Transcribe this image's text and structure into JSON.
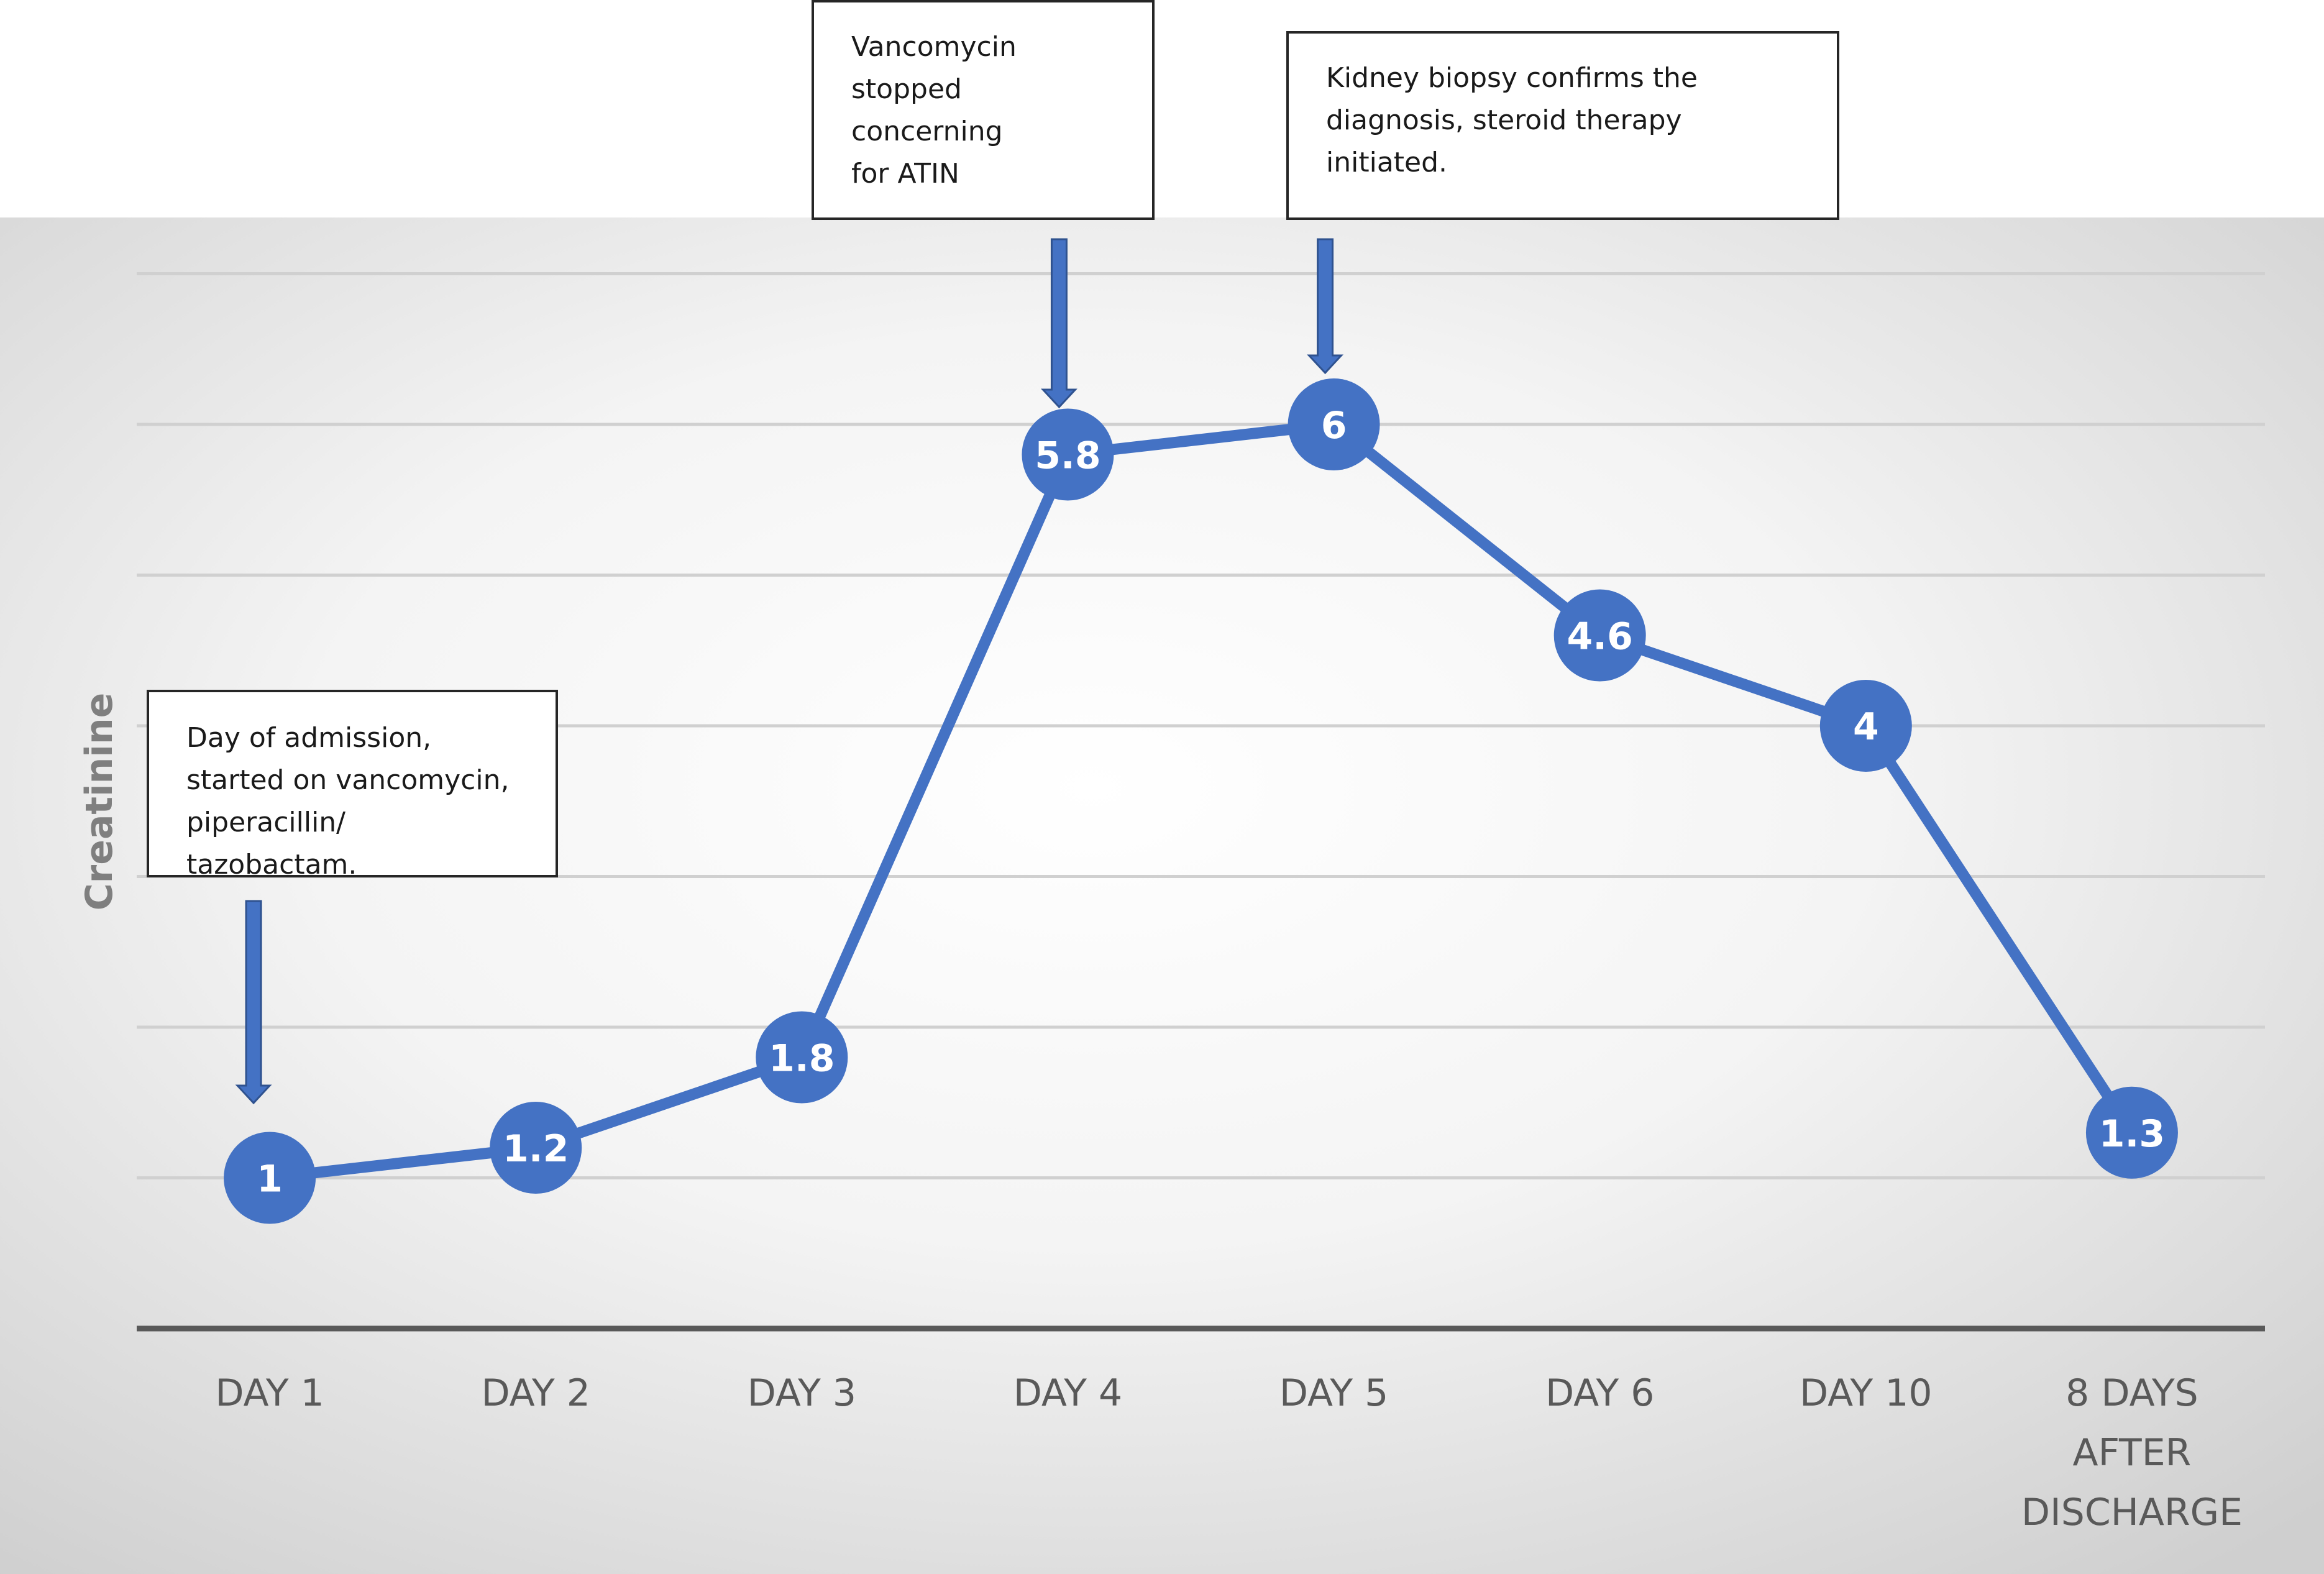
{
  "chart_data": {
    "type": "line",
    "categories": [
      "DAY 1",
      "DAY 2",
      "DAY 3",
      "DAY 4",
      "DAY 5",
      "DAY 6",
      "DAY 10",
      "8 DAYS AFTER DISCHARGE"
    ],
    "values": [
      1,
      1.2,
      1.8,
      5.8,
      6,
      4.6,
      4,
      1.3
    ],
    "data_labels": [
      "1",
      "1.2",
      "1.8",
      "5.8",
      "6",
      "4.6",
      "4",
      "1.3"
    ],
    "ylabel": "Creatinine",
    "ylim": [
      0,
      7
    ],
    "grid": true,
    "legend": "none",
    "annotations": [
      {
        "text": "Day of admission,\nstarted on vancomycin,\npiperacillin/ tazobactam.",
        "category": "DAY 1"
      },
      {
        "text": "Vancomycin\nstopped concerning\nfor ATIN",
        "category": "DAY 4"
      },
      {
        "text": "Kidney biopsy confirms the\ndiagnosis, steroid therapy initiated.",
        "category": "DAY 5"
      }
    ],
    "colors": {
      "series": "#4472c4",
      "grid": "#d0d0d0",
      "axis": "#595959",
      "tick_text": "#595959"
    }
  }
}
